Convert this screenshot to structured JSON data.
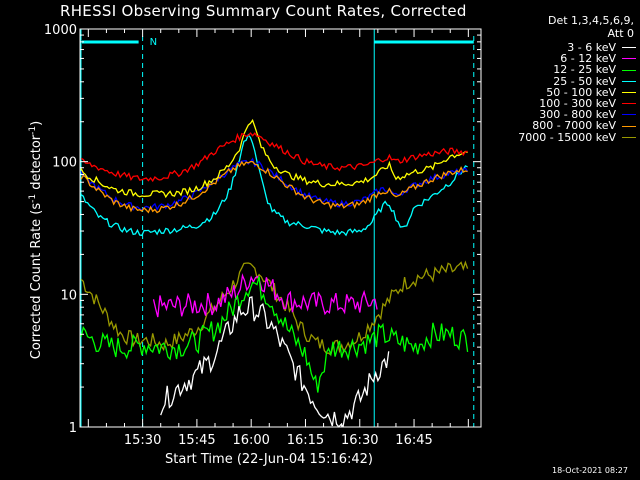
{
  "chart_data": {
    "type": "line",
    "title": "RHESSI Observing Summary Count Rates, Corrected",
    "xlabel": "Start Time (22-Jun-04 15:16:42)",
    "ylabel": "Corrected Count Rate (s",
    "ylabel_exp1": "-1",
    "ylabel_mid": " detector",
    "ylabel_exp2": "-1",
    "ylabel_end": ")",
    "yscale": "log",
    "ylim": [
      1,
      1000
    ],
    "y_ticks": [
      "1",
      "10",
      "100",
      "1000"
    ],
    "xlim_minutes": [
      -17.3,
      93.5
    ],
    "x_ticks": [
      {
        "label": "15:30",
        "min": 0
      },
      {
        "label": "15:45",
        "min": 15
      },
      {
        "label": "16:00",
        "min": 30
      },
      {
        "label": "16:15",
        "min": 45
      },
      {
        "label": "16:30",
        "min": 60
      },
      {
        "label": "16:45",
        "min": 75
      }
    ],
    "detectors": "Det 1,3,4,5,6,9,",
    "attenuator": "Att 0",
    "timestamp": "18-Oct-2021 08:27",
    "night_marker": "N",
    "annotation_bar_color": "#00ffff",
    "series": [
      {
        "name": "3 - 6 keV",
        "color": "#ffffff",
        "x": [
          5,
          10,
          15,
          20,
          24,
          27,
          30,
          33,
          36,
          40,
          44,
          48,
          52,
          56,
          60,
          64,
          68
        ],
        "values": [
          1.5,
          2.0,
          2.5,
          3.5,
          5.5,
          7.5,
          8.0,
          7.0,
          5.5,
          3.5,
          2.2,
          1.5,
          1.2,
          1.2,
          1.6,
          2.5,
          3.3
        ]
      },
      {
        "name": "6 - 12 keV",
        "color": "#ff00ff",
        "x": [
          3,
          10,
          20,
          26,
          29,
          31,
          33,
          36,
          40,
          48,
          56,
          60,
          65
        ],
        "values": [
          8.0,
          8.2,
          8.5,
          10.5,
          13.0,
          14.0,
          13.0,
          11.0,
          9.0,
          8.5,
          8.4,
          8.5,
          9.0
        ]
      },
      {
        "name": "12 - 25 keV",
        "color": "#00ff00",
        "x": [
          -17,
          -12,
          -8,
          -3,
          0,
          5,
          10,
          15,
          20,
          25,
          28,
          30,
          32,
          35,
          40,
          45,
          48,
          52,
          56,
          60,
          63,
          66,
          70,
          75,
          80,
          85,
          90
        ],
        "values": [
          5.0,
          4.3,
          4.0,
          4.0,
          4.2,
          4.0,
          4.0,
          4.4,
          5.5,
          8.0,
          10.5,
          12.5,
          11.5,
          9.5,
          5.5,
          3.5,
          2.0,
          4.0,
          4.0,
          4.2,
          4.5,
          5.0,
          4.5,
          4.0,
          5.0,
          5.0,
          4.5
        ]
      },
      {
        "name": "25 - 50 keV",
        "color": "#00ffff",
        "x": [
          -17,
          -12,
          -8,
          -4,
          0,
          5,
          10,
          15,
          20,
          24,
          26,
          28,
          30,
          32,
          34,
          36,
          40,
          45,
          50,
          55,
          60,
          63,
          66,
          68,
          70,
          72,
          75,
          80,
          85,
          90
        ],
        "values": [
          55,
          38,
          33,
          30,
          29,
          30,
          31,
          33,
          40,
          60,
          90,
          140,
          160,
          90,
          55,
          42,
          35,
          33,
          30,
          29,
          30,
          34,
          45,
          50,
          38,
          30,
          45,
          55,
          70,
          95
        ]
      },
      {
        "name": "50 - 100 keV",
        "color": "#ffff00",
        "x": [
          -17,
          -12,
          -8,
          -3,
          0,
          5,
          10,
          15,
          20,
          24,
          27,
          29,
          30,
          31,
          33,
          36,
          40,
          45,
          50,
          55,
          60,
          63,
          66,
          68,
          70,
          73,
          76,
          80,
          85,
          90
        ],
        "values": [
          85,
          70,
          62,
          58,
          57,
          57,
          58,
          63,
          75,
          95,
          130,
          190,
          210,
          180,
          125,
          95,
          80,
          72,
          68,
          68,
          70,
          75,
          85,
          95,
          75,
          80,
          85,
          90,
          110,
          120
        ]
      },
      {
        "name": "100 - 300 keV",
        "color": "#ff0000",
        "x": [
          -17,
          -12,
          -8,
          -3,
          0,
          5,
          10,
          15,
          20,
          25,
          28,
          30,
          32,
          35,
          40,
          45,
          50,
          55,
          60,
          63,
          66,
          68,
          70,
          73,
          76,
          80,
          85,
          90
        ],
        "values": [
          100,
          90,
          82,
          76,
          74,
          76,
          82,
          95,
          120,
          145,
          160,
          165,
          158,
          140,
          118,
          100,
          92,
          90,
          92,
          96,
          105,
          108,
          100,
          105,
          110,
          115,
          120,
          118
        ]
      },
      {
        "name": "300 - 800 keV",
        "color": "#0000ff",
        "x": [
          -17,
          -12,
          -8,
          -3,
          0,
          5,
          10,
          15,
          20,
          25,
          28,
          30,
          32,
          35,
          40,
          45,
          50,
          55,
          60,
          63,
          66,
          68,
          70,
          73,
          76,
          80,
          85,
          90
        ],
        "values": [
          80,
          62,
          52,
          46,
          45,
          46,
          50,
          58,
          72,
          90,
          98,
          100,
          96,
          85,
          68,
          56,
          50,
          48,
          50,
          55,
          62,
          62,
          55,
          62,
          68,
          75,
          82,
          85
        ]
      },
      {
        "name": "800 - 7000 keV",
        "color": "#ff9900",
        "x": [
          -17,
          -12,
          -8,
          -3,
          0,
          5,
          10,
          15,
          20,
          25,
          28,
          30,
          32,
          35,
          40,
          45,
          50,
          55,
          60,
          63,
          66,
          68,
          70,
          73,
          76,
          80,
          85,
          90
        ],
        "values": [
          78,
          60,
          50,
          44,
          43,
          44,
          48,
          56,
          70,
          88,
          96,
          98,
          94,
          83,
          66,
          54,
          48,
          46,
          48,
          53,
          60,
          60,
          53,
          60,
          66,
          74,
          83,
          88
        ]
      },
      {
        "name": "7000 - 15000 keV",
        "color": "#999900",
        "x": [
          -17,
          -14,
          -10,
          -6,
          -2,
          2,
          6,
          10,
          15,
          20,
          24,
          28,
          30,
          32,
          35,
          40,
          44,
          48,
          52,
          56,
          60,
          64,
          68,
          72,
          76,
          80,
          84,
          88,
          90
        ],
        "values": [
          13,
          10,
          7,
          5,
          4.5,
          4.5,
          4.2,
          4.6,
          5.5,
          8,
          11,
          15,
          16,
          15,
          12,
          8,
          5.5,
          4.3,
          4.0,
          4.2,
          4.8,
          6.5,
          9,
          12,
          13.5,
          14,
          15,
          15.5,
          15
        ]
      }
    ]
  }
}
